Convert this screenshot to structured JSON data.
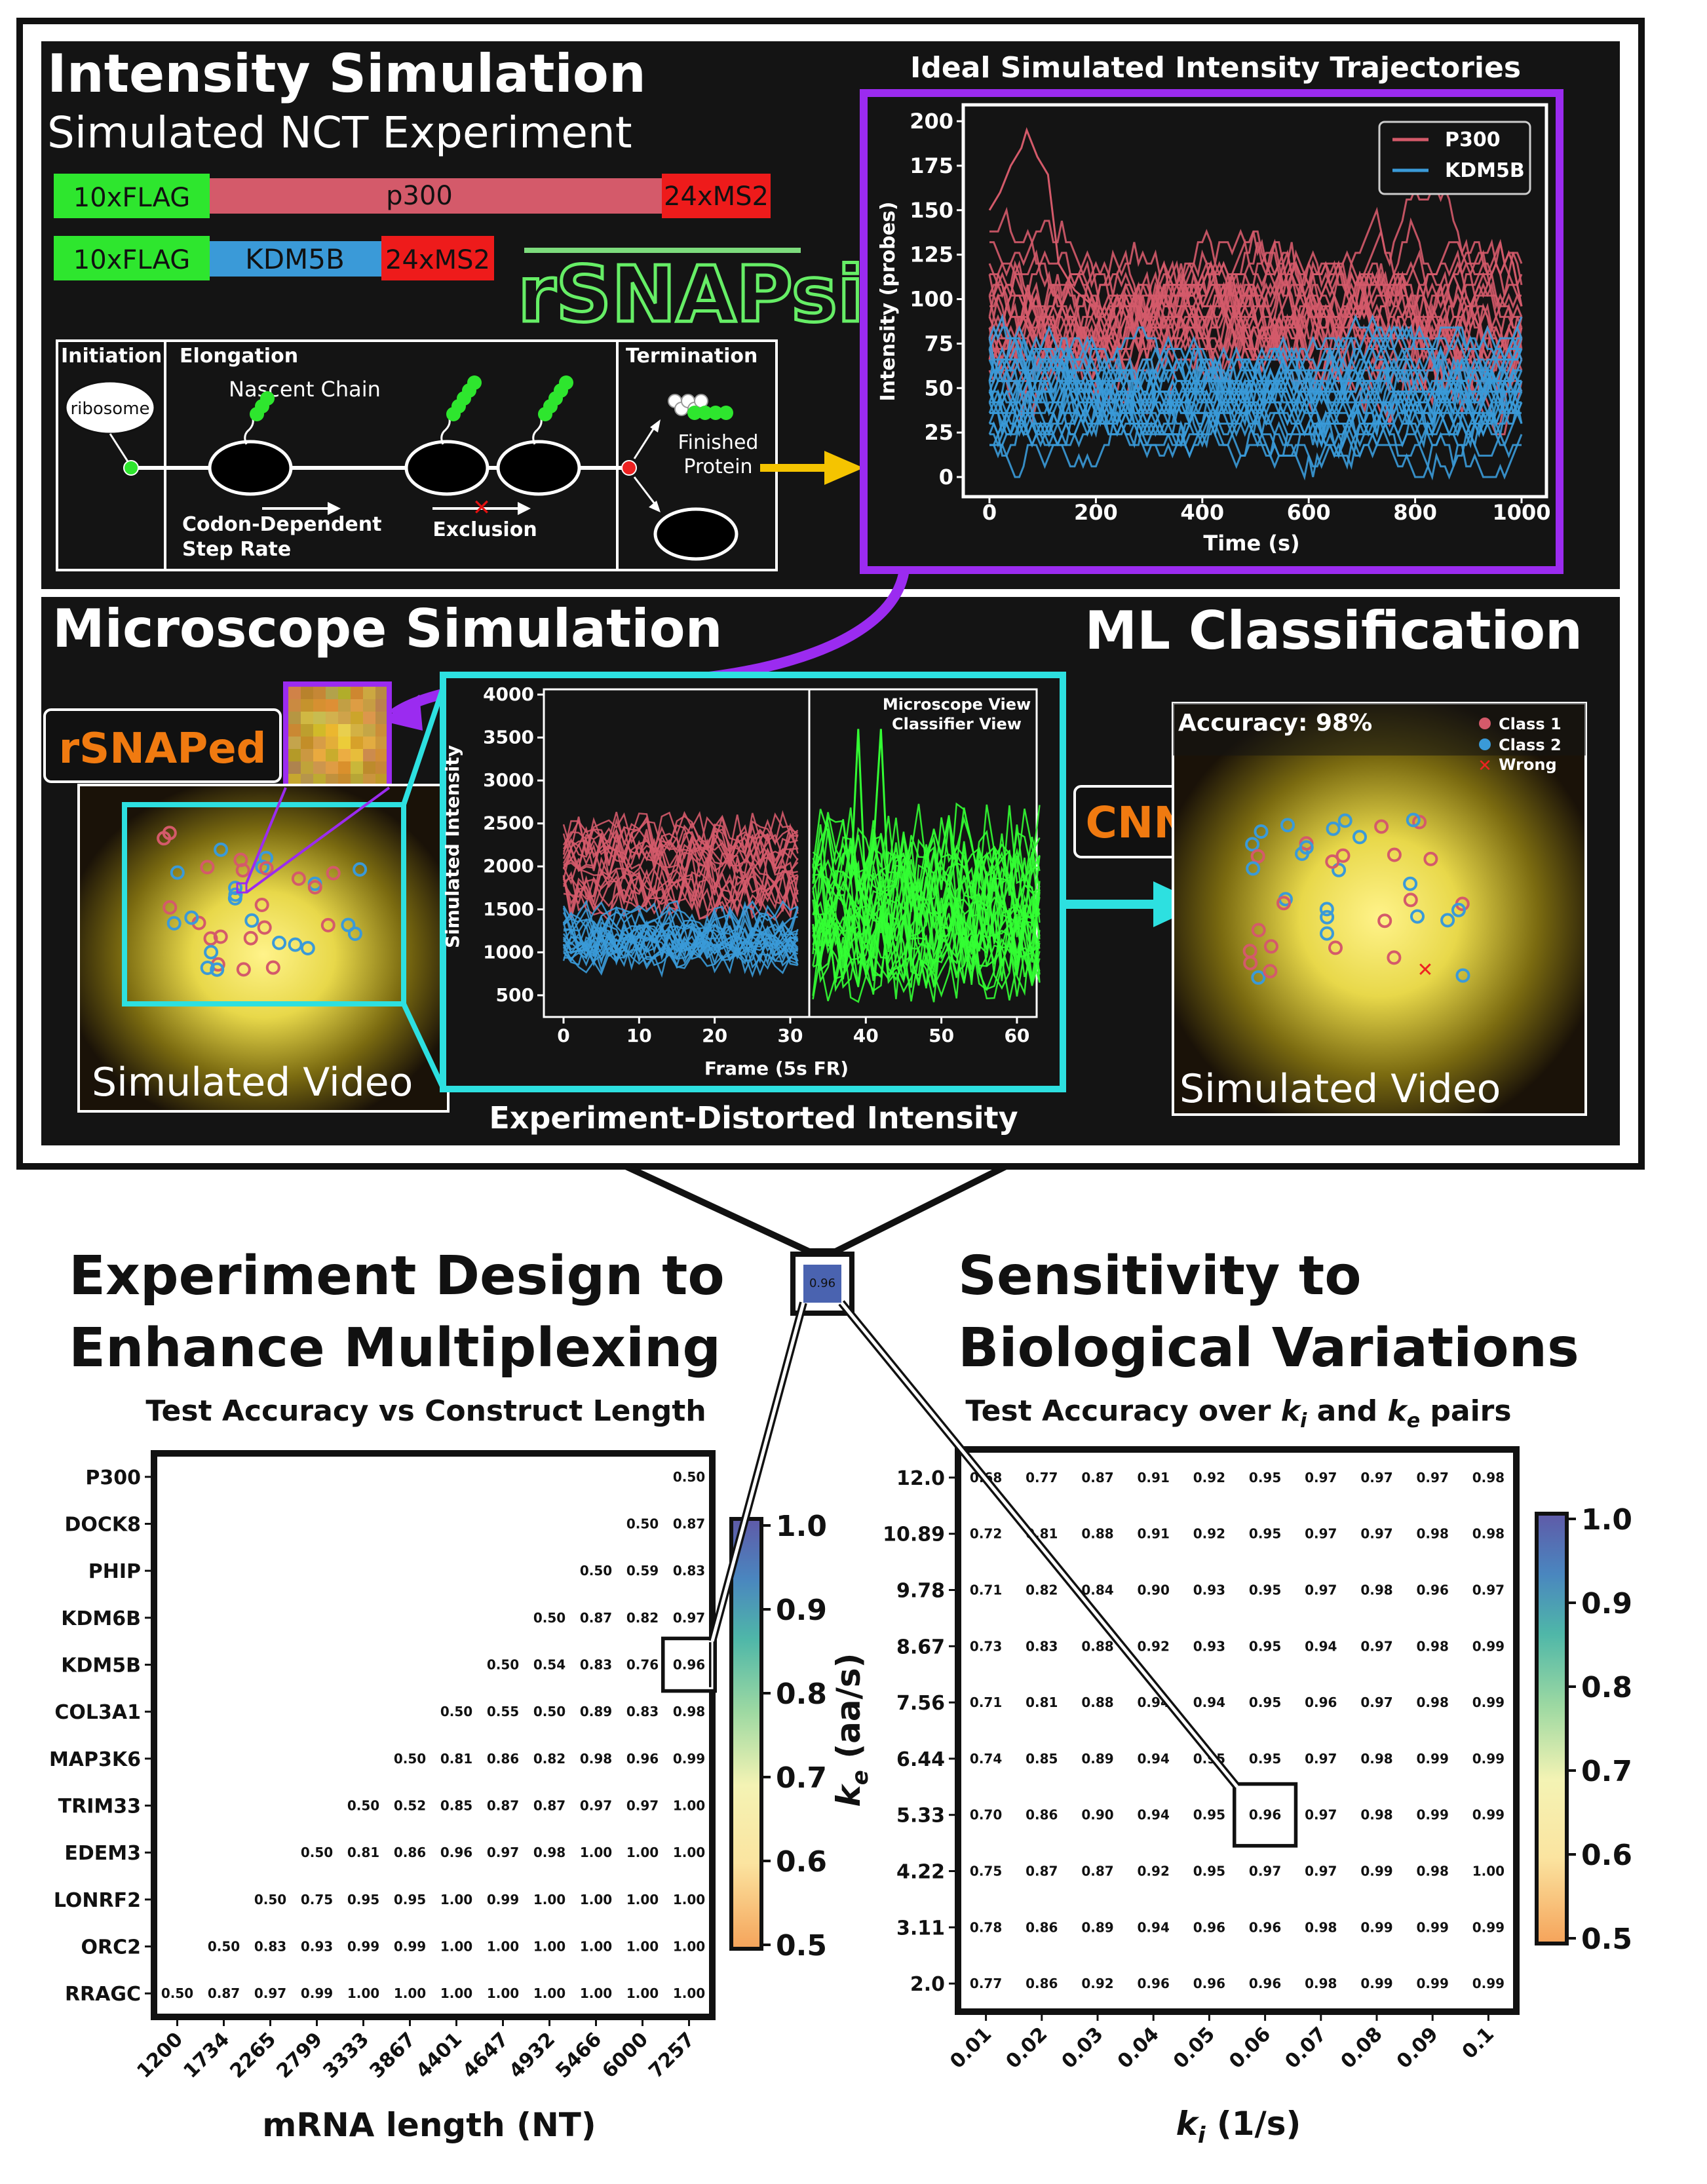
{
  "colors": {
    "p300": "#d45a6a",
    "kdm": "#3a9ad8",
    "flag": "#2ee62e",
    "ms2": "#ee1b1b",
    "purple": "#9b2bf0",
    "cyan": "#2de0e0",
    "orange": "#f07a10",
    "green": "#33ff33"
  },
  "top": {
    "intensity_title": "Intensity Simulation",
    "intensity_subtitle": "Simulated NCT Experiment",
    "constructs": [
      {
        "tag": "10xFLAG",
        "gene": "p300",
        "reporter": "24xMS2"
      },
      {
        "tag": "10xFLAG",
        "gene": "KDM5B",
        "reporter": "24xMS2"
      }
    ],
    "logo_text": "rSNAPsim",
    "diagram": {
      "initiation": "Initiation",
      "elongation": "Elongation",
      "termination": "Termination",
      "ribosome": "ribosome",
      "nascent_chain": "Nascent Chain",
      "codon_line1": "Codon-Dependent",
      "codon_line2": "Step Rate",
      "exclusion": "Exclusion",
      "finished_line1": "Finished",
      "finished_line2": "Protein"
    },
    "traj_chart": {
      "title": "Ideal Simulated Intensity Trajectories",
      "xlabel": "Time (s)",
      "ylabel": "Intensity (probes)",
      "xticks": [
        "0",
        "200",
        "400",
        "600",
        "800",
        "1000"
      ],
      "yticks": [
        "0",
        "25",
        "50",
        "75",
        "100",
        "125",
        "150",
        "175",
        "200"
      ],
      "legend": [
        "P300",
        "KDM5B"
      ]
    }
  },
  "middle": {
    "microscope_title": "Microscope Simulation",
    "ml_title": "ML Classification",
    "rsnaped": "rSNAPed",
    "sim_video_left": "Simulated Video",
    "sim_video_right": "Simulated Video",
    "cnn": "CNN",
    "accuracy_label": "Accuracy:",
    "accuracy_value": "98%",
    "class_legend": [
      "Class 1",
      "Class 2",
      "Wrong"
    ],
    "mid_chart": {
      "ylabel": "Simulated Intensity",
      "xlabel": "Frame (5s FR)",
      "yticks": [
        "500",
        "1000",
        "1500",
        "2000",
        "2500",
        "3000",
        "3500",
        "4000"
      ],
      "xticks": [
        "0",
        "10",
        "20",
        "30",
        "40",
        "50",
        "60"
      ],
      "view_line1": "Microscope View",
      "view_line2": "Classifier View"
    },
    "distorted_caption": "Experiment-Distorted Intensity"
  },
  "zoom_cell_value": "0.96",
  "bottom_left": {
    "title_line1": "Experiment Design to",
    "title_line2": "Enhance Multiplexing",
    "subtitle": "Test Accuracy vs Construct Length",
    "xlabel": "mRNA length (NT)",
    "rows": [
      "P300",
      "DOCK8",
      "PHIP",
      "KDM6B",
      "KDM5B",
      "COL3A1",
      "MAP3K6",
      "TRIM33",
      "EDEM3",
      "LONRF2",
      "ORC2",
      "RRAGC"
    ],
    "cols": [
      "1200",
      "1734",
      "2265",
      "2799",
      "3333",
      "3867",
      "4401",
      "4647",
      "4932",
      "5466",
      "6000",
      "7257"
    ],
    "values": [
      [
        null,
        null,
        null,
        null,
        null,
        null,
        null,
        null,
        null,
        null,
        null,
        "0.50"
      ],
      [
        null,
        null,
        null,
        null,
        null,
        null,
        null,
        null,
        null,
        null,
        "0.50",
        "0.87"
      ],
      [
        null,
        null,
        null,
        null,
        null,
        null,
        null,
        null,
        null,
        "0.50",
        "0.59",
        "0.83"
      ],
      [
        null,
        null,
        null,
        null,
        null,
        null,
        null,
        null,
        "0.50",
        "0.87",
        "0.82",
        "0.97"
      ],
      [
        null,
        null,
        null,
        null,
        null,
        null,
        null,
        "0.50",
        "0.54",
        "0.83",
        "0.76",
        "0.96"
      ],
      [
        null,
        null,
        null,
        null,
        null,
        null,
        "0.50",
        "0.55",
        "0.50",
        "0.89",
        "0.83",
        "0.98"
      ],
      [
        null,
        null,
        null,
        null,
        null,
        "0.50",
        "0.81",
        "0.86",
        "0.82",
        "0.98",
        "0.96",
        "0.99"
      ],
      [
        null,
        null,
        null,
        null,
        "0.50",
        "0.52",
        "0.85",
        "0.87",
        "0.87",
        "0.97",
        "0.97",
        "1.00"
      ],
      [
        null,
        null,
        null,
        "0.50",
        "0.81",
        "0.86",
        "0.96",
        "0.97",
        "0.98",
        "1.00",
        "1.00",
        "1.00"
      ],
      [
        null,
        null,
        "0.50",
        "0.75",
        "0.95",
        "0.95",
        "1.00",
        "0.99",
        "1.00",
        "1.00",
        "1.00",
        "1.00"
      ],
      [
        null,
        "0.50",
        "0.83",
        "0.93",
        "0.99",
        "0.99",
        "1.00",
        "1.00",
        "1.00",
        "1.00",
        "1.00",
        "1.00"
      ],
      [
        "0.50",
        "0.87",
        "0.97",
        "0.99",
        "1.00",
        "1.00",
        "1.00",
        "1.00",
        "1.00",
        "1.00",
        "1.00",
        "1.00"
      ]
    ],
    "colorbar_ticks": [
      "1.0",
      "0.9",
      "0.8",
      "0.7",
      "0.6",
      "0.5"
    ]
  },
  "bottom_right": {
    "title_line1": "Sensitivity to",
    "title_line2": "Biological Variations",
    "subtitle_pre": "Test Accuracy over ",
    "subtitle_and": " and ",
    "subtitle_post": " pairs",
    "ki_sym": "k",
    "ki_sub": "i",
    "ke_sym": "k",
    "ke_sub": "e",
    "ylabel_unit": " (aa/s)",
    "xlabel_unit": " (1/s)",
    "rows": [
      "12.0",
      "10.89",
      "9.78",
      "8.67",
      "7.56",
      "6.44",
      "5.33",
      "4.22",
      "3.11",
      "2.0"
    ],
    "cols": [
      "0.01",
      "0.02",
      "0.03",
      "0.04",
      "0.05",
      "0.06",
      "0.07",
      "0.08",
      "0.09",
      "0.1"
    ],
    "values": [
      [
        "0.68",
        "0.77",
        "0.87",
        "0.91",
        "0.92",
        "0.95",
        "0.97",
        "0.97",
        "0.97",
        "0.98"
      ],
      [
        "0.72",
        "0.81",
        "0.88",
        "0.91",
        "0.92",
        "0.95",
        "0.97",
        "0.97",
        "0.98",
        "0.98"
      ],
      [
        "0.71",
        "0.82",
        "0.84",
        "0.90",
        "0.93",
        "0.95",
        "0.97",
        "0.98",
        "0.96",
        "0.97"
      ],
      [
        "0.73",
        "0.83",
        "0.88",
        "0.92",
        "0.93",
        "0.95",
        "0.94",
        "0.97",
        "0.98",
        "0.99"
      ],
      [
        "0.71",
        "0.81",
        "0.88",
        "0.94",
        "0.94",
        "0.95",
        "0.96",
        "0.97",
        "0.98",
        "0.99"
      ],
      [
        "0.74",
        "0.85",
        "0.89",
        "0.94",
        "0.95",
        "0.95",
        "0.97",
        "0.98",
        "0.99",
        "0.99"
      ],
      [
        "0.70",
        "0.86",
        "0.90",
        "0.94",
        "0.95",
        "0.96",
        "0.97",
        "0.98",
        "0.99",
        "0.99"
      ],
      [
        "0.75",
        "0.87",
        "0.87",
        "0.92",
        "0.95",
        "0.97",
        "0.97",
        "0.99",
        "0.98",
        "1.00"
      ],
      [
        "0.78",
        "0.86",
        "0.89",
        "0.94",
        "0.96",
        "0.96",
        "0.98",
        "0.99",
        "0.99",
        "0.99"
      ],
      [
        "0.77",
        "0.86",
        "0.92",
        "0.96",
        "0.96",
        "0.96",
        "0.98",
        "0.99",
        "0.99",
        "0.99"
      ]
    ],
    "colorbar_ticks": [
      "1.0",
      "0.9",
      "0.8",
      "0.7",
      "0.6",
      "0.5"
    ]
  }
}
